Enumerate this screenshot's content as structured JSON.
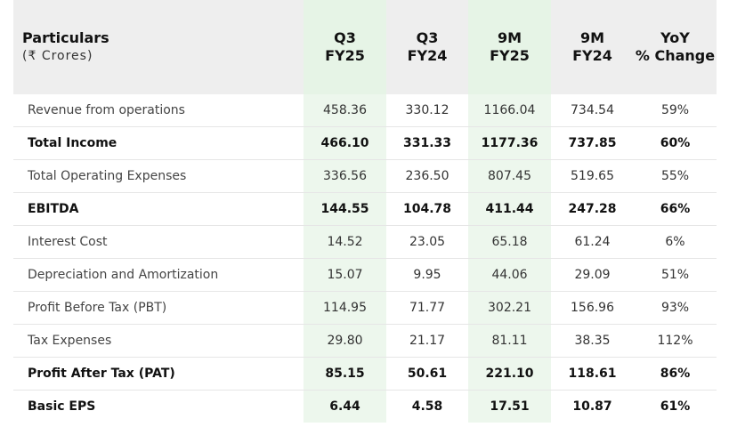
{
  "header": {
    "particulars": "Particulars",
    "units": "(₹ Crores)",
    "columns": [
      {
        "line1": "Q3",
        "line2": "FY25"
      },
      {
        "line1": "Q3",
        "line2": "FY24"
      },
      {
        "line1": "9M",
        "line2": "FY25"
      },
      {
        "line1": "9M",
        "line2": "FY24"
      },
      {
        "line1": "YoY",
        "line2": "% Change"
      }
    ]
  },
  "rows": [
    {
      "label": "Revenue from operations",
      "bold": false,
      "values": [
        "458.36",
        "330.12",
        "1166.04",
        "734.54",
        "59%"
      ]
    },
    {
      "label": "Total Income",
      "bold": true,
      "values": [
        "466.10",
        "331.33",
        "1177.36",
        "737.85",
        "60%"
      ]
    },
    {
      "label": "Total Operating Expenses",
      "bold": false,
      "values": [
        "336.56",
        "236.50",
        "807.45",
        "519.65",
        "55%"
      ]
    },
    {
      "label": "EBITDA",
      "bold": true,
      "values": [
        "144.55",
        "104.78",
        "411.44",
        "247.28",
        "66%"
      ]
    },
    {
      "label": "Interest Cost",
      "bold": false,
      "values": [
        "14.52",
        "23.05",
        "65.18",
        "61.24",
        "6%"
      ]
    },
    {
      "label": "Depreciation and Amortization",
      "bold": false,
      "values": [
        "15.07",
        "9.95",
        "44.06",
        "29.09",
        "51%"
      ]
    },
    {
      "label": "Profit Before Tax (PBT)",
      "bold": false,
      "values": [
        "114.95",
        "71.77",
        "302.21",
        "156.96",
        "93%"
      ]
    },
    {
      "label": "Tax Expenses",
      "bold": false,
      "values": [
        "29.80",
        "21.17",
        "81.11",
        "38.35",
        "112%"
      ]
    },
    {
      "label": "Profit After Tax (PAT)",
      "bold": true,
      "values": [
        "85.15",
        "50.61",
        "221.10",
        "118.61",
        "86%"
      ]
    },
    {
      "label": "Basic EPS",
      "bold": true,
      "values": [
        "6.44",
        "4.58",
        "17.51",
        "10.87",
        "61%"
      ]
    }
  ],
  "colors": {
    "header_bg": "#eeeeee",
    "highlight_header_bg": "#e6f4e6",
    "highlight_cell_bg": "#edf7ed"
  }
}
